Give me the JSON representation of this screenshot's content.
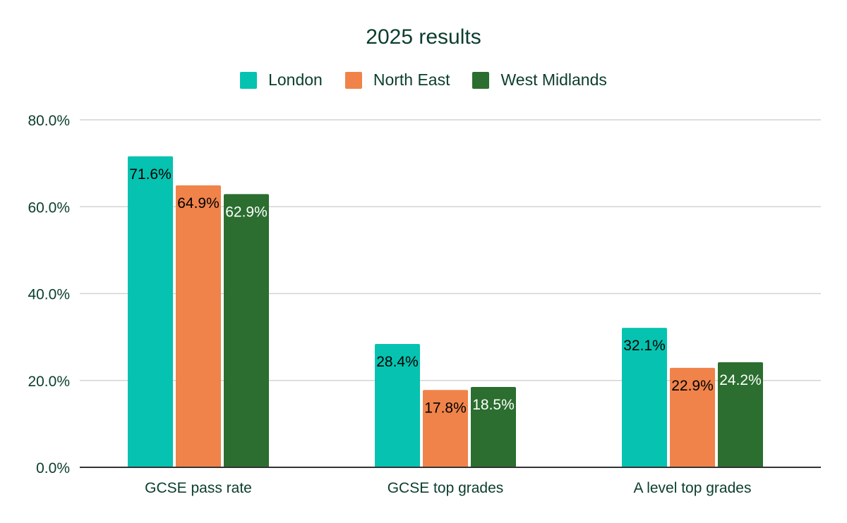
{
  "chart_data": {
    "type": "bar",
    "title": "2025 results",
    "categories": [
      "GCSE pass rate",
      "GCSE top grades",
      "A level top grades"
    ],
    "series": [
      {
        "name": "London",
        "color": "#05c3b0",
        "values": [
          71.6,
          28.4,
          32.1
        ],
        "labels": [
          "71.6%",
          "28.4%",
          "32.1%"
        ],
        "label_color": "#000000"
      },
      {
        "name": "North East",
        "color": "#f0834a",
        "values": [
          64.9,
          17.8,
          22.9
        ],
        "labels": [
          "64.9%",
          "17.8%",
          "22.9%"
        ],
        "label_color": "#000000"
      },
      {
        "name": "West Midlands",
        "color": "#2b6e2f",
        "values": [
          62.9,
          18.5,
          24.2
        ],
        "labels": [
          "62.9%",
          "18.5%",
          "24.2%"
        ],
        "label_color": "#ffffff"
      }
    ],
    "y_ticks": [
      0,
      20,
      40,
      60,
      80
    ],
    "y_tick_labels": [
      "0.0%",
      "20.0%",
      "40.0%",
      "60.0%",
      "80.0%"
    ],
    "ylim": [
      0,
      80
    ],
    "xlabel": "",
    "ylabel": "",
    "grid": true,
    "legend": "top-center"
  }
}
